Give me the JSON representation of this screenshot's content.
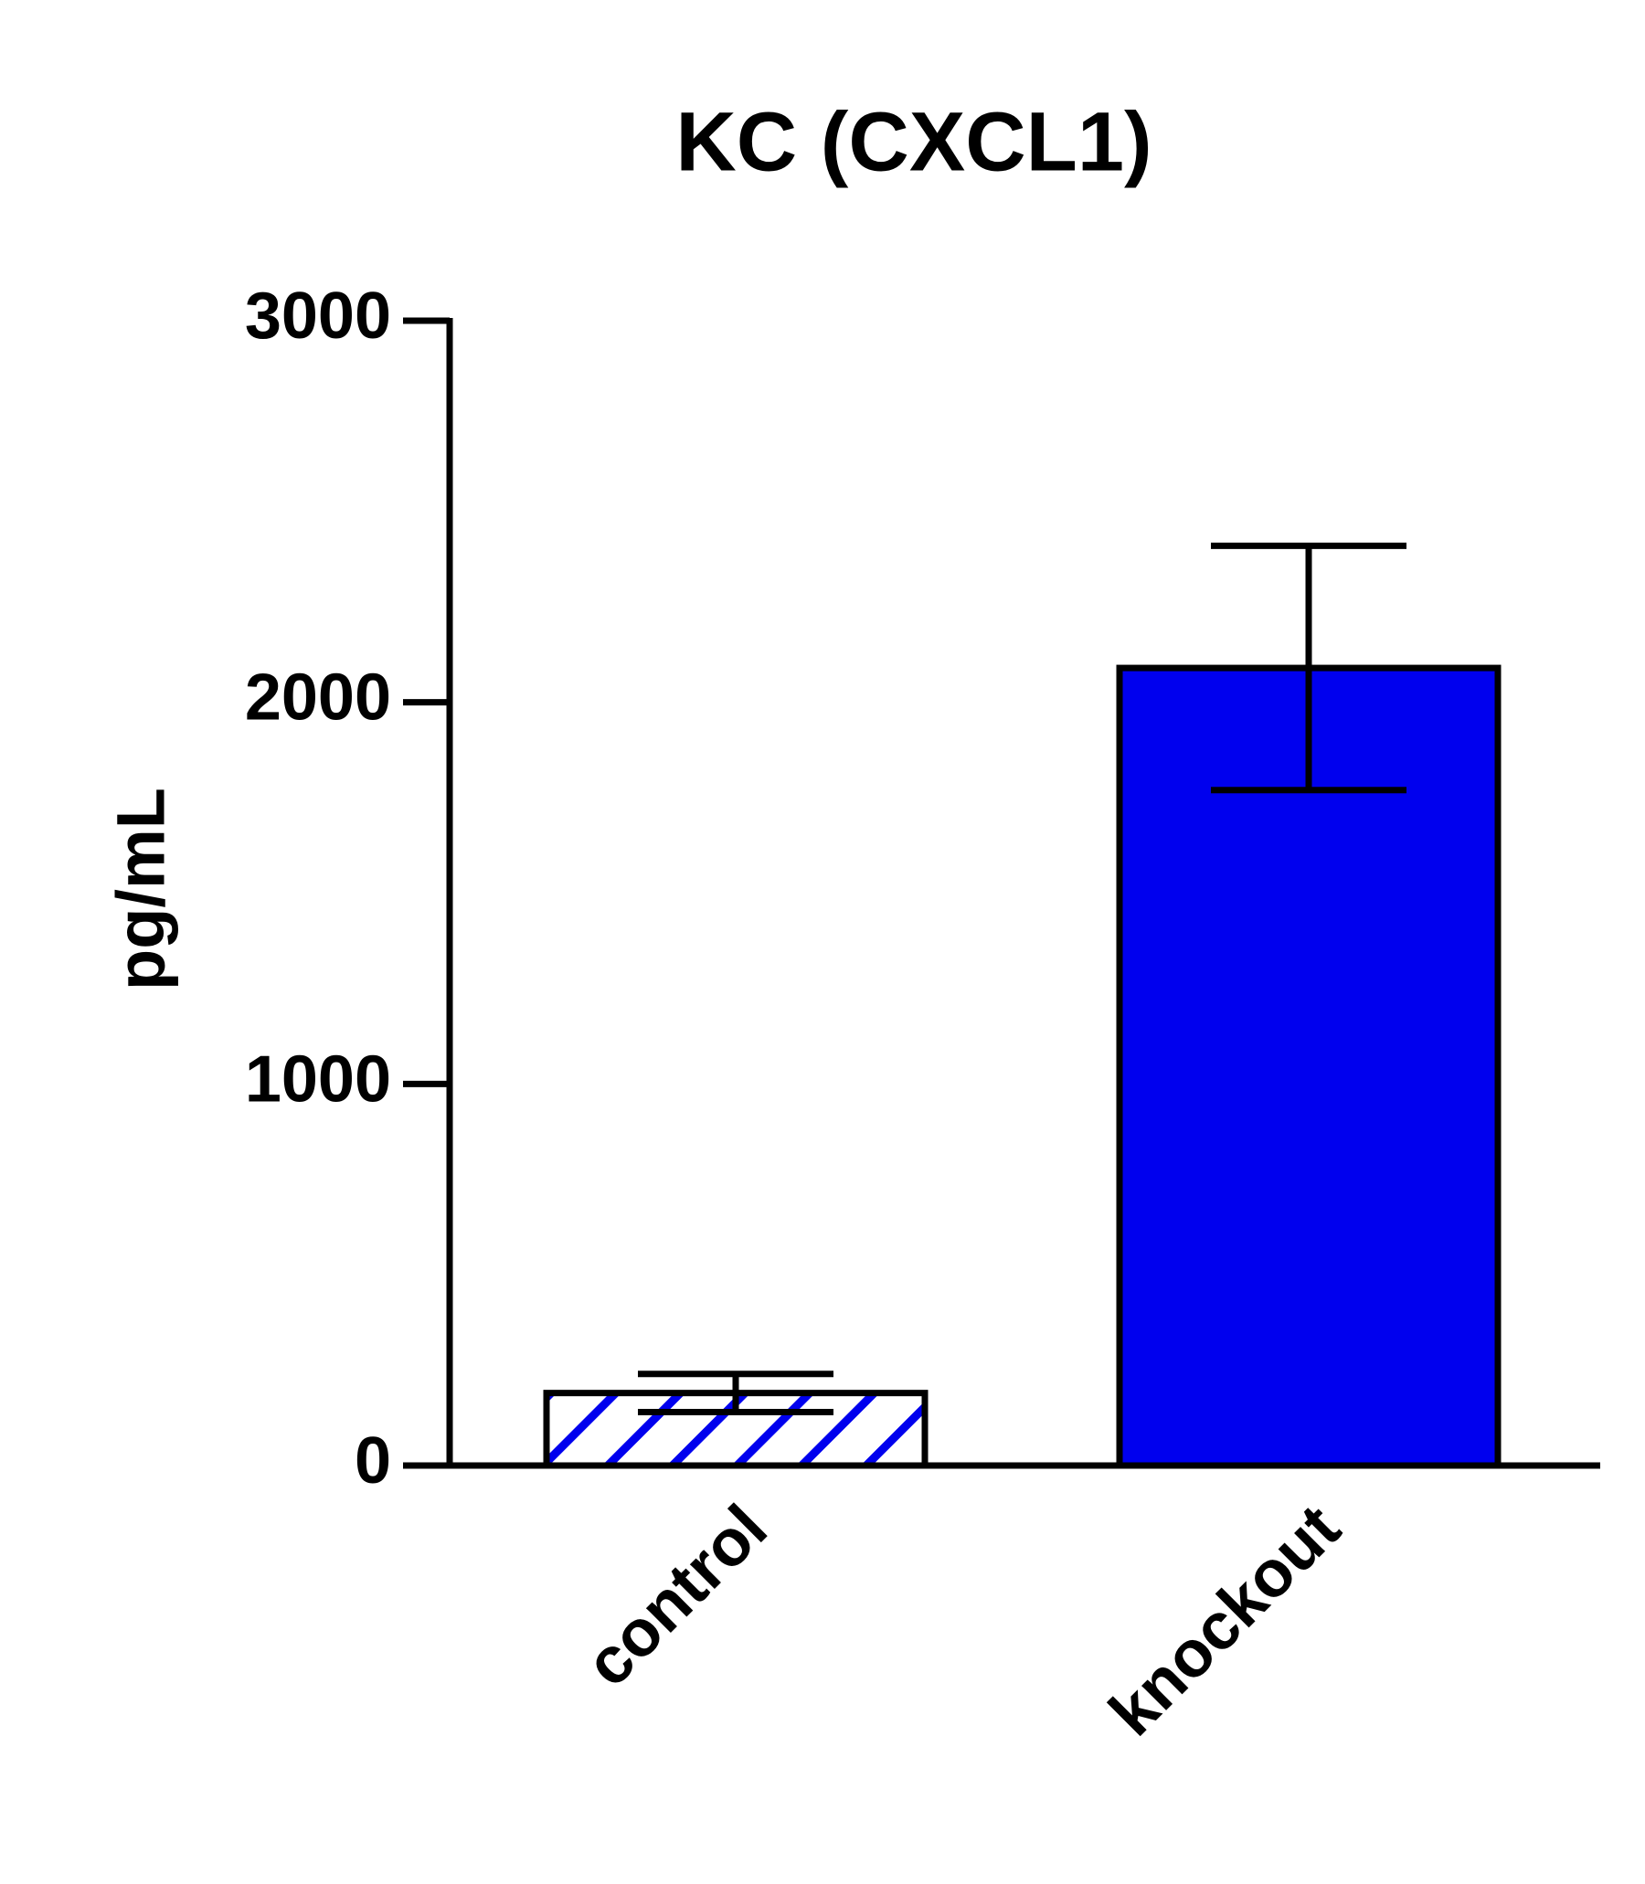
{
  "chart_data": {
    "type": "bar",
    "title": "KC (CXCL1)",
    "ylabel": "pg/mL",
    "categories": [
      "control",
      "knockout"
    ],
    "values": [
      190,
      2090
    ],
    "errors": [
      50,
      320
    ],
    "color": "#0000ee",
    "fills": [
      "hatch",
      "solid"
    ],
    "ylim": [
      0,
      3000
    ],
    "yticks": [
      0,
      1000,
      2000,
      3000
    ],
    "grid": false
  }
}
